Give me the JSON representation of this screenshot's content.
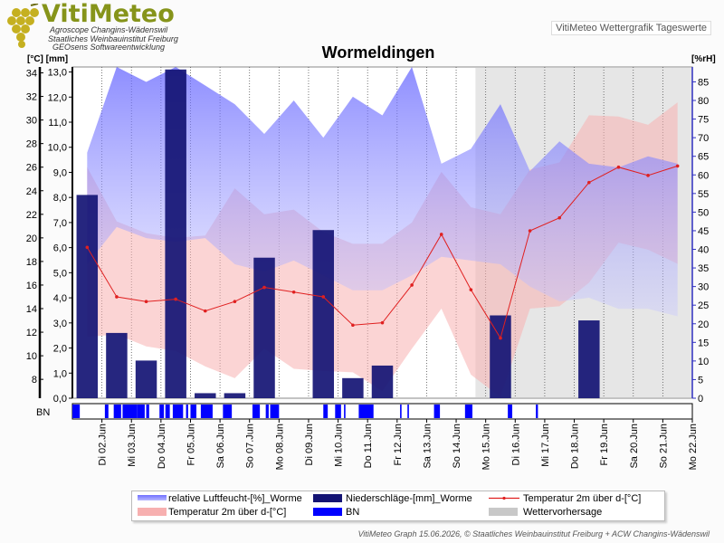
{
  "header": {
    "logo_text": "VitiMeteo",
    "logo_lines": [
      "Agroscope Changins-Wädenswil",
      "Staatliches Weinbauinstitut Freiburg",
      "GEOsens Softwareentwicklung"
    ],
    "right_label": "VitiMeteo Wettergrafik Tageswerte"
  },
  "footer": "VitiMeteo Graph 15.06.2026, © Staatliches Weinbauinstitut Freiburg + ACW Changins-Wädenswil",
  "chart_data": {
    "type": "combo",
    "title": "Wormeldingen",
    "left_axis_units": "[°C] [mm]",
    "right_axis_units": "[%rH]",
    "temp_ticks": [
      8,
      10,
      12,
      14,
      16,
      18,
      20,
      22,
      24,
      26,
      28,
      30,
      32,
      34
    ],
    "precip_ticks": [
      "0,0",
      "1,0",
      "2,0",
      "3,0",
      "4,0",
      "5,0",
      "6,0",
      "7,0",
      "8,0",
      "9,0",
      "10,0",
      "11,0",
      "12,0",
      "13,0"
    ],
    "rh_ticks": [
      0,
      5,
      10,
      15,
      20,
      25,
      30,
      35,
      40,
      45,
      50,
      55,
      60,
      65,
      70,
      75,
      80,
      85
    ],
    "temp_ylim": [
      6.4,
      34.5
    ],
    "precip_ylim": [
      0,
      13.2
    ],
    "rh_ylim": [
      0,
      89
    ],
    "days": [
      "Di 02.Jun",
      "Mi 03.Jun",
      "Do 04.Jun",
      "Fr 05.Jun",
      "Sa 06.Jun",
      "So 07.Jun",
      "Mo 08.Jun",
      "Di 09.Jun",
      "Mi 10.Jun",
      "Do 11.Jun",
      "Fr 12.Jun",
      "Sa 13.Jun",
      "So 14.Jun",
      "Mo 15.Jun",
      "Di 16.Jun",
      "Mi 17.Jun",
      "Do 18.Jun",
      "Fr 19.Jun",
      "Sa 20.Jun",
      "So 21.Jun",
      "Mo 22.Jun"
    ],
    "forecast_from_index": 14,
    "temp_mean": [
      19.2,
      15.0,
      14.6,
      14.8,
      13.8,
      14.6,
      15.8,
      15.4,
      15.0,
      12.6,
      12.8,
      16.0,
      20.3,
      15.6,
      11.5,
      20.6,
      21.7,
      24.7,
      26.0,
      25.3,
      26.1
    ],
    "temp_max": [
      26.0,
      21.4,
      20.4,
      20.0,
      20.2,
      24.2,
      22.0,
      22.4,
      20.5,
      19.5,
      19.5,
      21.3,
      25.6,
      22.6,
      22.0,
      25.8,
      26.4,
      30.4,
      30.3,
      29.6,
      31.5
    ],
    "temp_min": [
      11.6,
      11.8,
      10.8,
      10.4,
      9.1,
      8.1,
      10.6,
      8.9,
      8.7,
      8.6,
      7.0,
      10.6,
      14.0,
      8.4,
      6.5,
      14.0,
      14.2,
      16.2,
      19.6,
      19.0,
      17.8
    ],
    "rh_max": [
      66,
      89,
      85,
      89,
      84,
      79,
      71,
      80,
      70,
      81,
      76,
      89,
      63,
      67,
      79,
      61,
      69,
      63,
      62,
      65,
      63
    ],
    "rh_min": [
      36,
      46,
      43,
      42,
      43,
      36,
      34,
      37,
      33,
      29,
      29,
      33,
      38,
      37,
      36,
      30,
      26,
      27,
      24,
      24,
      22
    ],
    "precip": [
      8.1,
      2.6,
      1.5,
      13.1,
      0.2,
      0.2,
      5.6,
      0.0,
      6.7,
      0.8,
      1.3,
      0.0,
      0.0,
      0.0,
      3.3,
      0.0,
      0.0,
      3.1,
      0.0,
      0.0,
      0.0
    ],
    "bn_segments": [
      [
        0,
        0.25
      ],
      [
        1.1,
        1.22
      ],
      [
        1.4,
        1.65
      ],
      [
        1.7,
        2.2
      ],
      [
        2.2,
        2.45
      ],
      [
        2.5,
        2.6
      ],
      [
        2.95,
        3.1
      ],
      [
        3.15,
        3.3
      ],
      [
        3.4,
        3.75
      ],
      [
        3.85,
        3.92
      ],
      [
        4.0,
        4.2
      ],
      [
        4.35,
        4.75
      ],
      [
        5.1,
        5.4
      ],
      [
        6.1,
        6.35
      ],
      [
        6.55,
        6.65
      ],
      [
        6.7,
        7.0
      ],
      [
        8.5,
        8.65
      ],
      [
        8.9,
        9.1
      ],
      [
        9.2,
        9.25
      ],
      [
        9.7,
        10.2
      ],
      [
        11.1,
        11.15
      ],
      [
        11.35,
        11.4
      ],
      [
        12.25,
        12.45
      ],
      [
        13.3,
        13.55
      ],
      [
        14.75,
        14.9
      ],
      [
        15.7,
        15.77
      ]
    ],
    "legend": {
      "rh": "relative Luftfeucht-[%]_Worme",
      "precip": "Niederschläge-[mm]_Worme",
      "temp_mean": "Temperatur 2m über d-[°C]",
      "temp_range": "Temperatur 2m über d-[°C]",
      "bn": "BN",
      "forecast": "Wettervorhersage"
    },
    "bn_label": "BN",
    "colors": {
      "rh": "#7070ff",
      "precip": "#141474",
      "temp_line": "#e02020",
      "temp_band": "#f7b0b0",
      "bn": "#0000ff",
      "forecast": "#c8c8c8"
    }
  }
}
